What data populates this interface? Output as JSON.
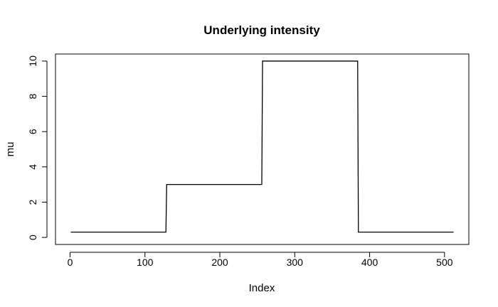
{
  "chart_data": {
    "type": "line",
    "title": "Underlying intensity",
    "xlabel": "Index",
    "ylabel": "mu",
    "xlim": [
      1,
      512
    ],
    "ylim": [
      0,
      10
    ],
    "x_ticks": [
      0,
      100,
      200,
      300,
      400,
      500
    ],
    "y_ticks": [
      0,
      2,
      4,
      6,
      8,
      10
    ],
    "x_tick_labels": [
      "0",
      "100",
      "200",
      "300",
      "400",
      "500"
    ],
    "y_tick_labels": [
      "0",
      "2",
      "4",
      "6",
      "8",
      "10"
    ],
    "grid": false,
    "line_color": "#000000",
    "series": [
      {
        "x": [
          1,
          128,
          129,
          256,
          257,
          384,
          385,
          512
        ],
        "y": [
          0.3,
          0.3,
          3,
          3,
          10,
          10,
          0.3,
          0.3
        ]
      }
    ]
  }
}
